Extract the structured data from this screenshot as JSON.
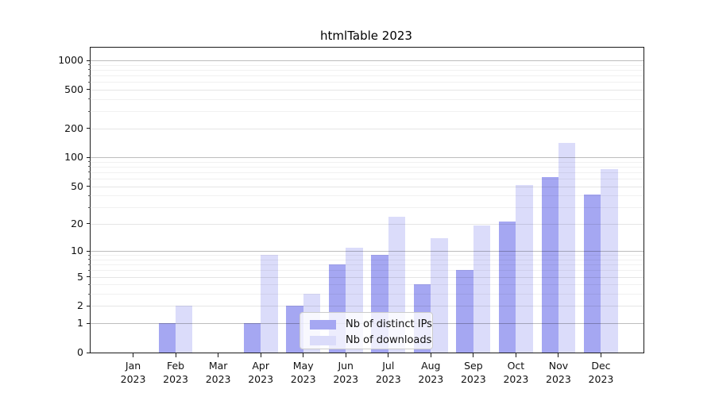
{
  "chart_data": {
    "type": "bar",
    "title": "htmlTable 2023",
    "categories": [
      {
        "month": "Jan",
        "year": "2023"
      },
      {
        "month": "Feb",
        "year": "2023"
      },
      {
        "month": "Mar",
        "year": "2023"
      },
      {
        "month": "Apr",
        "year": "2023"
      },
      {
        "month": "May",
        "year": "2023"
      },
      {
        "month": "Jun",
        "year": "2023"
      },
      {
        "month": "Jul",
        "year": "2023"
      },
      {
        "month": "Aug",
        "year": "2023"
      },
      {
        "month": "Sep",
        "year": "2023"
      },
      {
        "month": "Oct",
        "year": "2023"
      },
      {
        "month": "Nov",
        "year": "2023"
      },
      {
        "month": "Dec",
        "year": "2023"
      }
    ],
    "series": [
      {
        "name": "Nb of distinct IPs",
        "color": "#a5a7f2",
        "values": [
          0,
          1,
          0,
          1,
          2,
          7,
          9,
          4,
          6,
          21,
          62,
          41
        ]
      },
      {
        "name": "Nb of downloads",
        "color": "#dbdcfa",
        "values": [
          0,
          2,
          0,
          9,
          3,
          11,
          24,
          14,
          19,
          52,
          140,
          75
        ]
      }
    ],
    "yscale": "log1p",
    "yticks": [
      0,
      1,
      2,
      5,
      10,
      20,
      50,
      100,
      200,
      500,
      1000
    ],
    "yticks_minor": [
      3,
      4,
      6,
      7,
      8,
      9,
      30,
      40,
      60,
      70,
      80,
      90,
      300,
      400,
      600,
      700,
      800,
      900
    ],
    "ylim": [
      0,
      1352
    ],
    "grid": true,
    "legend_position": "lower center"
  }
}
